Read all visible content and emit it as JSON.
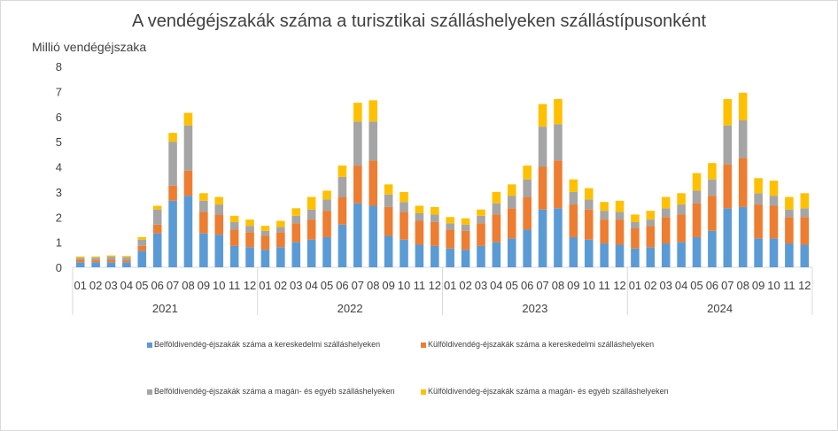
{
  "chart_data": {
    "type": "bar",
    "stacked": true,
    "title": "A vendégéjszakák száma a turisztikai szálláshelyeken szállástípusonként",
    "ylabel": "Millió vendégéjszaka",
    "xlabel": "",
    "ylim": [
      0,
      8
    ],
    "yticks": [
      0,
      1,
      2,
      3,
      4,
      5,
      6,
      7,
      8
    ],
    "grid": false,
    "legend_position": "bottom",
    "years": [
      "2021",
      "2022",
      "2023",
      "2024"
    ],
    "months": [
      "01",
      "02",
      "03",
      "04",
      "05",
      "06",
      "07",
      "08",
      "09",
      "10",
      "11",
      "12"
    ],
    "series": [
      {
        "name": "Belföldivendég-éjszakák száma a kereskedelmi szálláshelyeken",
        "color": "#5B9BD5",
        "values": [
          0.2,
          0.2,
          0.2,
          0.2,
          0.65,
          1.35,
          2.65,
          2.85,
          1.35,
          1.3,
          0.85,
          0.8,
          0.7,
          0.8,
          1.0,
          1.1,
          1.2,
          1.7,
          2.55,
          2.45,
          1.25,
          1.1,
          0.9,
          0.85,
          0.75,
          0.7,
          0.85,
          1.0,
          1.15,
          1.5,
          2.3,
          2.35,
          1.2,
          1.1,
          0.95,
          0.9,
          0.75,
          0.8,
          0.95,
          1.0,
          1.2,
          1.45,
          2.35,
          2.4,
          1.15,
          1.15,
          0.95,
          0.9
        ]
      },
      {
        "name": "Külföldivendég-éjszakák száma a kereskedelmi szálláshelyeken",
        "color": "#ED7D31",
        "values": [
          0.1,
          0.08,
          0.1,
          0.08,
          0.2,
          0.35,
          0.6,
          1.0,
          0.85,
          0.8,
          0.65,
          0.6,
          0.55,
          0.6,
          0.75,
          0.8,
          1.05,
          1.1,
          1.5,
          1.8,
          1.15,
          1.1,
          0.95,
          0.95,
          0.75,
          0.75,
          0.9,
          1.1,
          1.2,
          1.3,
          1.7,
          1.9,
          1.3,
          1.2,
          0.95,
          1.0,
          0.8,
          0.85,
          1.05,
          1.1,
          1.35,
          1.4,
          1.75,
          1.95,
          1.35,
          1.3,
          1.05,
          1.1
        ]
      },
      {
        "name": "Belföldivendég-éjszakák száma a magán- és egyéb szálláshelyeken",
        "color": "#A5A5A5",
        "values": [
          0.08,
          0.1,
          0.12,
          0.12,
          0.25,
          0.6,
          1.75,
          1.8,
          0.45,
          0.4,
          0.3,
          0.25,
          0.2,
          0.2,
          0.3,
          0.4,
          0.45,
          0.8,
          1.75,
          1.55,
          0.5,
          0.4,
          0.3,
          0.3,
          0.25,
          0.25,
          0.3,
          0.45,
          0.5,
          0.7,
          1.6,
          1.45,
          0.5,
          0.4,
          0.35,
          0.3,
          0.25,
          0.25,
          0.35,
          0.4,
          0.5,
          0.65,
          1.55,
          1.5,
          0.45,
          0.4,
          0.3,
          0.35
        ]
      },
      {
        "name": "Külföldivendég-éjszakák száma a magán- és egyéb szálláshelyeken",
        "color": "#FFC000",
        "values": [
          0.05,
          0.05,
          0.05,
          0.05,
          0.1,
          0.15,
          0.35,
          0.5,
          0.3,
          0.3,
          0.25,
          0.25,
          0.2,
          0.25,
          0.3,
          0.5,
          0.35,
          0.45,
          0.75,
          0.85,
          0.4,
          0.4,
          0.3,
          0.3,
          0.25,
          0.25,
          0.25,
          0.45,
          0.45,
          0.55,
          0.9,
          1.0,
          0.5,
          0.45,
          0.35,
          0.45,
          0.3,
          0.35,
          0.45,
          0.45,
          0.7,
          0.65,
          1.05,
          1.1,
          0.6,
          0.6,
          0.5,
          0.6
        ]
      }
    ]
  }
}
